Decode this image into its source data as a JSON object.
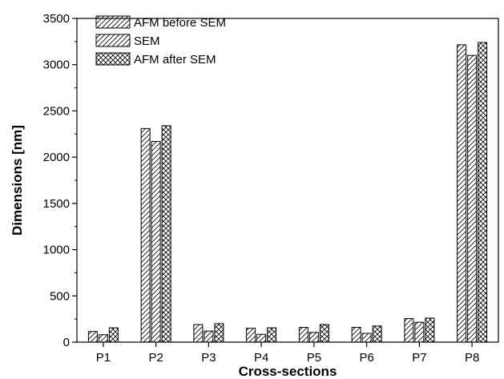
{
  "chart_data": {
    "type": "bar",
    "xlabel": "Cross-sections",
    "ylabel": "Dimensions [nm]",
    "categories": [
      "P1",
      "P2",
      "P3",
      "P4",
      "P5",
      "P6",
      "P7",
      "P8"
    ],
    "ylim": [
      0,
      3500
    ],
    "yticks": [
      0,
      500,
      1000,
      1500,
      2000,
      2500,
      3000,
      3500
    ],
    "grid": false,
    "legend_position": "top-left",
    "series": [
      {
        "name": "AFM before SEM",
        "pattern": "diagonal-hatch",
        "values": [
          115,
          2310,
          190,
          150,
          160,
          160,
          255,
          3215
        ]
      },
      {
        "name": "SEM",
        "pattern": "diagonal-hatch",
        "values": [
          80,
          2170,
          120,
          85,
          105,
          95,
          215,
          3100
        ]
      },
      {
        "name": "AFM after SEM",
        "pattern": "cross-hatch",
        "values": [
          155,
          2340,
          200,
          155,
          190,
          175,
          260,
          3240
        ]
      }
    ]
  }
}
